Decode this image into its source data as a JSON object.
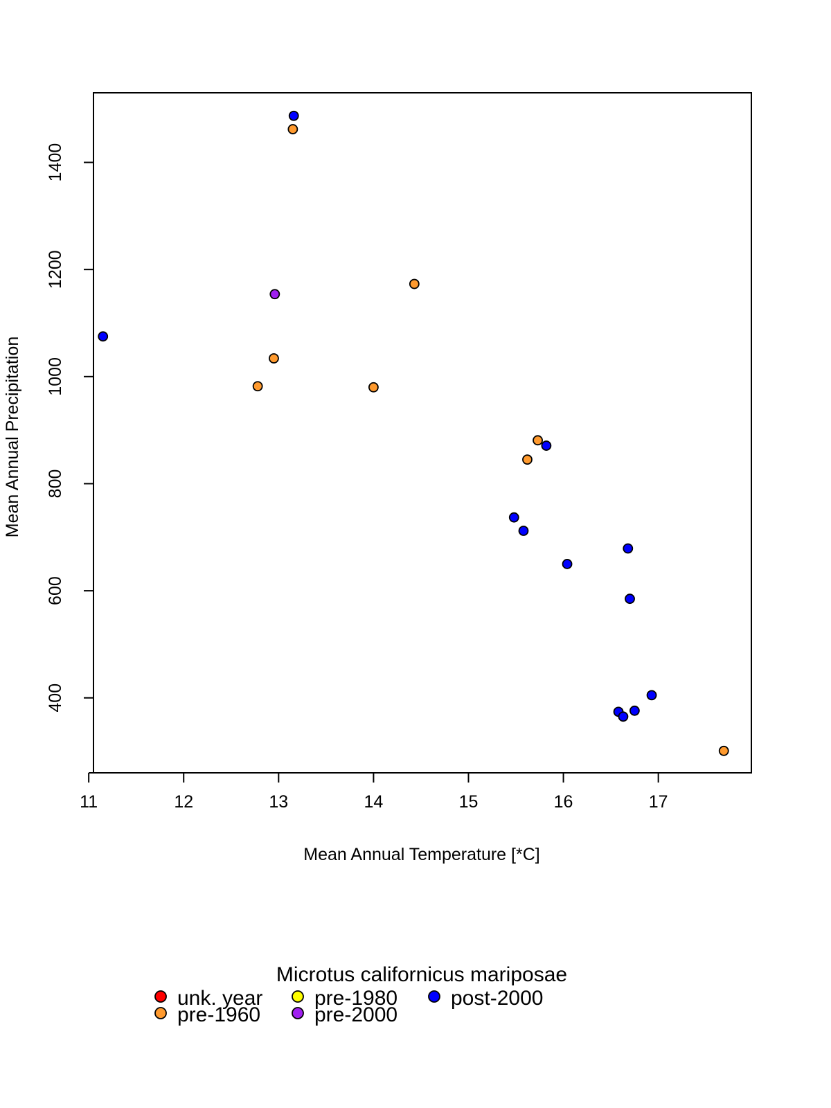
{
  "chart_data": {
    "type": "scatter",
    "title": "",
    "xlabel": "Mean Annual Temperature [*C]",
    "ylabel": "Mean Annual Precipitation",
    "xlim": [
      11.05,
      17.98
    ],
    "ylim": [
      260,
      1530
    ],
    "x_ticks": [
      11,
      12,
      13,
      14,
      15,
      16,
      17
    ],
    "y_ticks": [
      400,
      600,
      800,
      1000,
      1200,
      1400
    ],
    "grid": false,
    "legend": {
      "title": "Microtus californicus mariposae",
      "placement": "bottom",
      "entries": [
        {
          "label": "unk. year",
          "color": "#ff0000"
        },
        {
          "label": "pre-1960",
          "color": "#ff9a2e"
        },
        {
          "label": "pre-1980",
          "color": "#ffff00"
        },
        {
          "label": "pre-2000",
          "color": "#a020f0"
        },
        {
          "label": "post-2000",
          "color": "#0000ff"
        }
      ]
    },
    "series": [
      {
        "name": "unk. year",
        "color": "#ff0000",
        "points": []
      },
      {
        "name": "pre-1960",
        "color": "#ff9a2e",
        "points": [
          {
            "x": 13.15,
            "y": 1462
          },
          {
            "x": 14.43,
            "y": 1173
          },
          {
            "x": 12.95,
            "y": 1034
          },
          {
            "x": 12.78,
            "y": 982
          },
          {
            "x": 14.0,
            "y": 980
          },
          {
            "x": 15.73,
            "y": 881
          },
          {
            "x": 15.62,
            "y": 845
          },
          {
            "x": 17.69,
            "y": 301
          }
        ]
      },
      {
        "name": "pre-1980",
        "color": "#ffff00",
        "points": []
      },
      {
        "name": "pre-2000",
        "color": "#a020f0",
        "points": [
          {
            "x": 12.96,
            "y": 1154
          }
        ]
      },
      {
        "name": "post-2000",
        "color": "#0000ff",
        "points": [
          {
            "x": 13.16,
            "y": 1487
          },
          {
            "x": 11.15,
            "y": 1075
          },
          {
            "x": 15.82,
            "y": 871
          },
          {
            "x": 15.48,
            "y": 737
          },
          {
            "x": 15.58,
            "y": 712
          },
          {
            "x": 16.68,
            "y": 679
          },
          {
            "x": 16.04,
            "y": 650
          },
          {
            "x": 16.7,
            "y": 585
          },
          {
            "x": 16.93,
            "y": 405
          },
          {
            "x": 16.75,
            "y": 376
          },
          {
            "x": 16.58,
            "y": 374
          },
          {
            "x": 16.63,
            "y": 365
          }
        ]
      }
    ]
  }
}
